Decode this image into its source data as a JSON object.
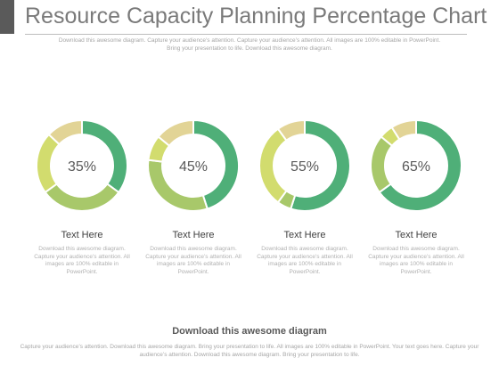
{
  "header": {
    "title": "Resource Capacity Planning Percentage Chart",
    "subtitle": "Download this awesome diagram. Capture your audience’s attention. Capture your audience’s attention. All images are 100% editable in PowerPoint. Bring your presentation to life. Download this awesome diagram."
  },
  "colors": {
    "dark_green": "#4faf78",
    "light_green": "#a8c86a",
    "yellow_green": "#d2dc6e",
    "tan": "#e2d496"
  },
  "chart_data": {
    "type": "pie",
    "variant": "donut",
    "charts": [
      {
        "label": "35%",
        "value": 35,
        "segments": [
          35,
          30,
          22,
          13
        ]
      },
      {
        "label": "45%",
        "value": 45,
        "segments": [
          45,
          32,
          9,
          14
        ]
      },
      {
        "label": "55%",
        "value": 55,
        "segments": [
          55,
          5,
          30,
          10
        ]
      },
      {
        "label": "65%",
        "value": 65,
        "segments": [
          65,
          21,
          5,
          9
        ]
      }
    ],
    "segment_colors": [
      "#4faf78",
      "#a8c86a",
      "#d2dc6e",
      "#e2d496"
    ]
  },
  "items": [
    {
      "title": "Text Here",
      "desc": "Download this awesome diagram. Capture your audience’s attention. All images are 100% editable in PowerPoint."
    },
    {
      "title": "Text Here",
      "desc": "Download this awesome diagram. Capture your audience’s attention. All images are 100% editable in PowerPoint."
    },
    {
      "title": "Text Here",
      "desc": "Download this awesome diagram. Capture your audience’s attention. All images are 100% editable in PowerPoint."
    },
    {
      "title": "Text Here",
      "desc": "Download this awesome diagram. Capture your audience’s attention. All images are 100% editable in PowerPoint."
    }
  ],
  "footer": {
    "title": "Download this awesome diagram",
    "text": "Capture your audience’s attention. Download this awesome diagram. Bring your presentation to life. All images are 100% editable in PowerPoint. Your text goes here. Capture your audience’s attention. Download this awesome diagram. Bring your presentation to life."
  }
}
